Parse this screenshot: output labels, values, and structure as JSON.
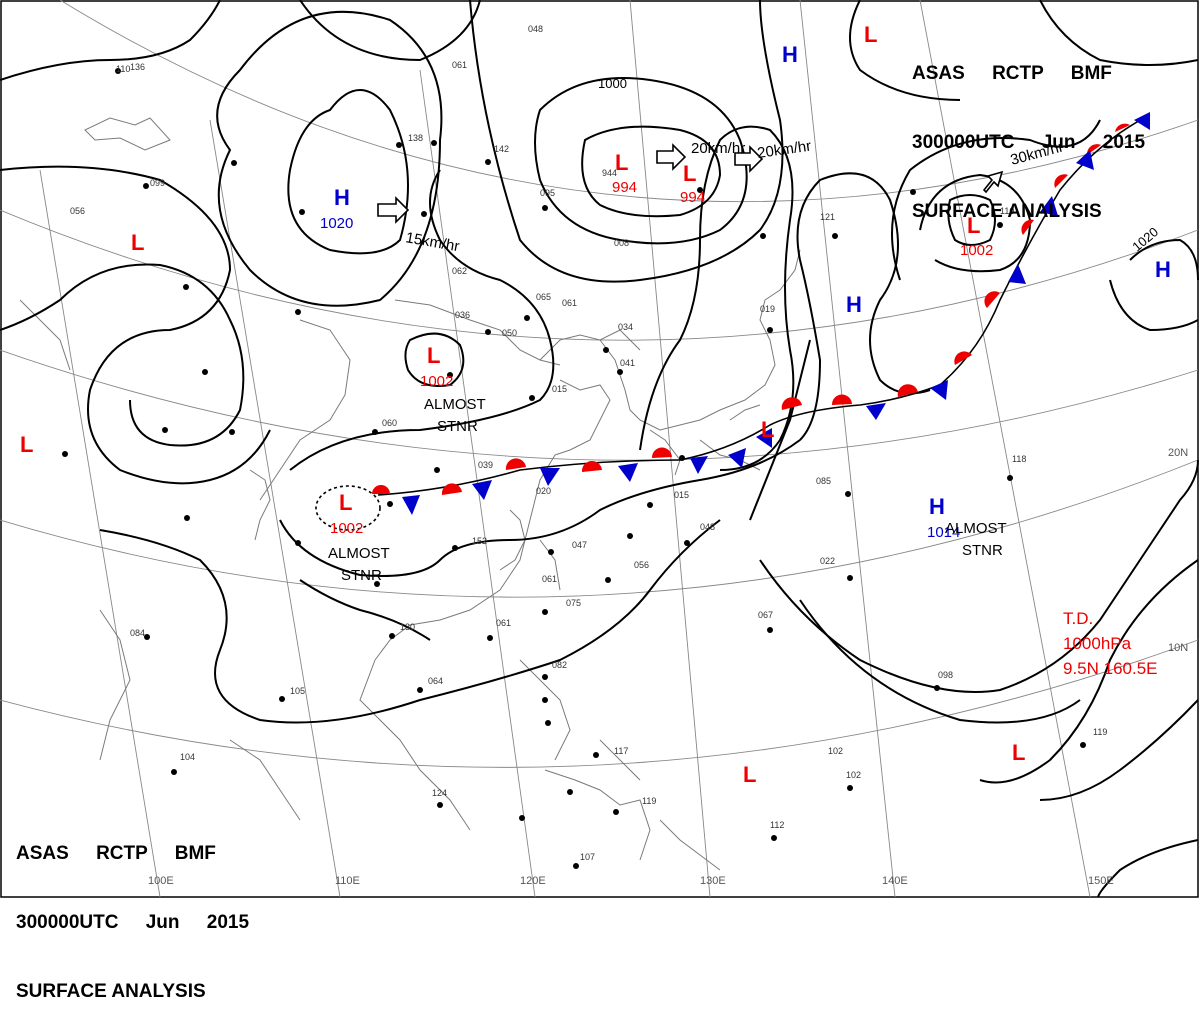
{
  "header": {
    "line1": "ASAS RCTP BMF",
    "line2": "300000UTC Jun 2015",
    "line3": "SURFACE ANALYSIS"
  },
  "pressure_centers": [
    {
      "type": "H",
      "value": "1020",
      "color": "#0000cc"
    },
    {
      "type": "L",
      "value": "",
      "color": "#ee0000"
    },
    {
      "type": "L",
      "value": "",
      "color": "#ee0000"
    },
    {
      "type": "L",
      "value": "994",
      "color": "#ee0000"
    },
    {
      "type": "L",
      "value": "994",
      "color": "#ee0000"
    },
    {
      "type": "L",
      "value": "1002",
      "color": "#ee0000"
    },
    {
      "type": "L",
      "value": "1002",
      "color": "#ee0000"
    },
    {
      "type": "L",
      "value": "1002",
      "color": "#ee0000"
    },
    {
      "type": "H",
      "value": "",
      "color": "#0000cc"
    },
    {
      "type": "H",
      "value": "",
      "color": "#0000cc"
    },
    {
      "type": "H",
      "value": "",
      "color": "#0000cc"
    },
    {
      "type": "H",
      "value": "1014",
      "color": "#0000cc"
    },
    {
      "type": "L",
      "value": "",
      "color": "#ee0000"
    },
    {
      "type": "L",
      "value": "",
      "color": "#ee0000"
    },
    {
      "type": "L",
      "value": "",
      "color": "#ee0000"
    },
    {
      "type": "L",
      "value": "",
      "color": "#ee0000"
    }
  ],
  "isobar_labels": [
    "1000",
    "1020"
  ],
  "movement_labels": [
    "15km/hr",
    "20km/hr",
    "20km/hr",
    "30km/hr"
  ],
  "stationary_labels": [
    {
      "line1": "ALMOST",
      "line2": "STNR"
    },
    {
      "line1": "ALMOST",
      "line2": "STNR"
    },
    {
      "line1": "ALMOST",
      "line2": "STNR"
    }
  ],
  "tropical_depression": {
    "line1": "T.D.",
    "line2": "1000hPa",
    "line3": "9.5N 160.5E"
  },
  "longitude_labels": [
    "100E",
    "110E",
    "120E",
    "130E",
    "140E",
    "150E"
  ],
  "latitude_labels": [
    "20N",
    "10N"
  ],
  "station_samples": [
    "048",
    "061",
    "110",
    "099",
    "056",
    "136",
    "138",
    "142",
    "095",
    "944",
    "008",
    "121",
    "110",
    "062",
    "036",
    "050",
    "065",
    "061",
    "034",
    "041",
    "015",
    "019",
    "060",
    "039",
    "020",
    "015",
    "048",
    "085",
    "118",
    "152",
    "047",
    "056",
    "061",
    "075",
    "067",
    "022",
    "130",
    "061",
    "064",
    "082",
    "084",
    "105",
    "104",
    "124",
    "117",
    "119",
    "102",
    "102",
    "112",
    "119",
    "098",
    "107",
    "136"
  ],
  "colors": {
    "high": "#0000cc",
    "low": "#ee0000",
    "warm_front": "#ee0000",
    "cold_front": "#0000cc",
    "lines": "#000000"
  }
}
